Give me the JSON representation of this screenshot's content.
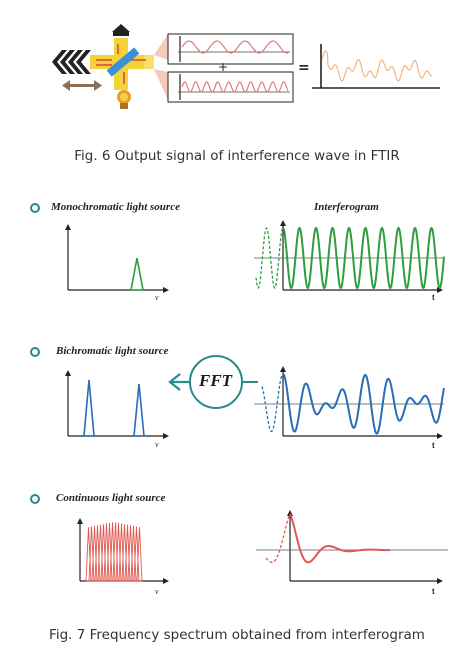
{
  "fig6": {
    "caption": "Fig. 6 Output signal of interference wave in FTIR",
    "plus": "+",
    "equals": "="
  },
  "fig7": {
    "caption": "Fig. 7  Frequency spectrum obtained from interferogram",
    "interferogram_title": "Interferogram",
    "fft_label": "FFT",
    "rows": [
      {
        "label": "Monochromatic light source",
        "x_label": "ν",
        "t_label": "t",
        "color": "#2e9e3e"
      },
      {
        "label": "Bichromatic light source",
        "x_label": "ν",
        "t_label": "t",
        "color": "#2a6db5"
      },
      {
        "label": "Continuous light source",
        "x_label": "ν",
        "t_label": "t",
        "color": "#e0574f"
      }
    ]
  },
  "colors": {
    "teal": "#2a8a8c",
    "green": "#2e9e3e",
    "blue": "#2a6db5",
    "red": "#e0574f",
    "orange": "#f0b070",
    "yellow": "#f4d23a"
  }
}
